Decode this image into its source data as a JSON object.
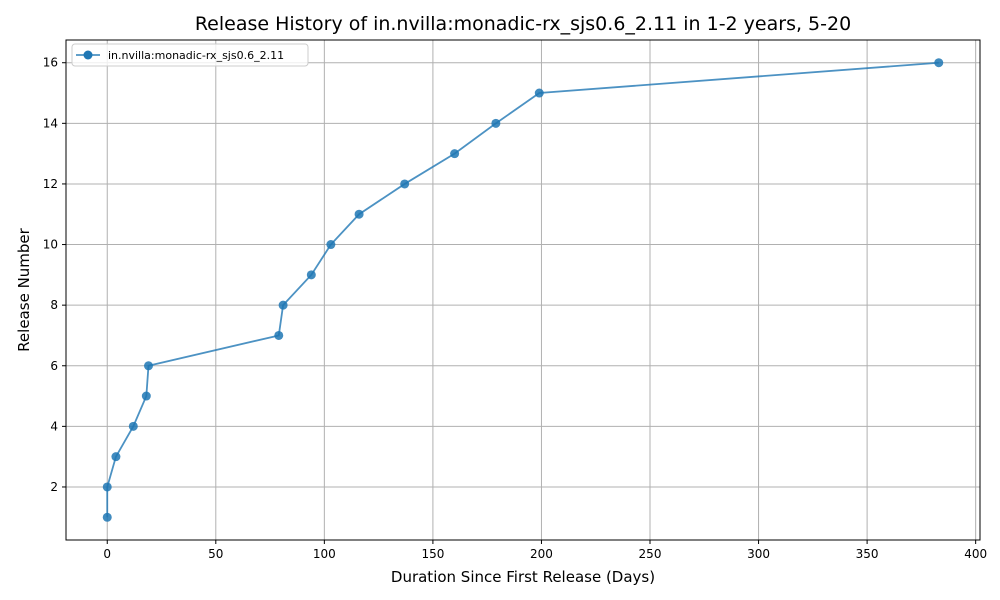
{
  "chart_data": {
    "type": "line",
    "title": "Release History of in.nvilla:monadic-rx_sjs0.6_2.11 in 1-2 years, 5-20",
    "xlabel": "Duration Since First Release (Days)",
    "ylabel": "Release Number",
    "xlim": [
      -19,
      402
    ],
    "ylim": [
      0.25,
      16.75
    ],
    "xticks": [
      0,
      50,
      100,
      150,
      200,
      250,
      300,
      350,
      400
    ],
    "yticks": [
      2,
      4,
      6,
      8,
      10,
      12,
      14,
      16
    ],
    "grid": true,
    "legend_position": "top-left",
    "series": [
      {
        "name": "in.nvilla:monadic-rx_sjs0.6_2.11",
        "color": "#1f77b4",
        "marker": "circle",
        "x": [
          0,
          0,
          4,
          12,
          18,
          19,
          79,
          81,
          94,
          103,
          116,
          137,
          160,
          179,
          199,
          383
        ],
        "y": [
          1,
          2,
          3,
          4,
          5,
          6,
          7,
          8,
          9,
          10,
          11,
          12,
          13,
          14,
          15,
          16
        ]
      }
    ]
  }
}
